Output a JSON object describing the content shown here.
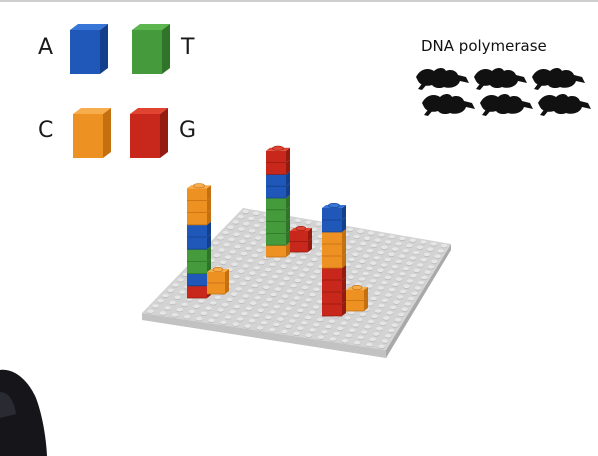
{
  "legend": {
    "items": [
      {
        "letter": "A",
        "color": "#1f58b9",
        "top": "#3775d6",
        "side": "#143f8c"
      },
      {
        "letter": "T",
        "color": "#459a3b",
        "top": "#5cb54f",
        "side": "#2f7428"
      },
      {
        "letter": "C",
        "color": "#ee9123",
        "top": "#f7ad4c",
        "side": "#c46f10"
      },
      {
        "letter": "G",
        "color": "#c8281b",
        "top": "#e0432f",
        "side": "#951a10"
      }
    ]
  },
  "enzyme": {
    "label": "DNA polymerase",
    "icon": "gripping-hand-icon",
    "count": 6
  },
  "colors": {
    "plate_top": "#d3d3d3",
    "plate_edge": "#a9a9a9",
    "stud": "#e6e6e6",
    "person": "#15151a"
  }
}
